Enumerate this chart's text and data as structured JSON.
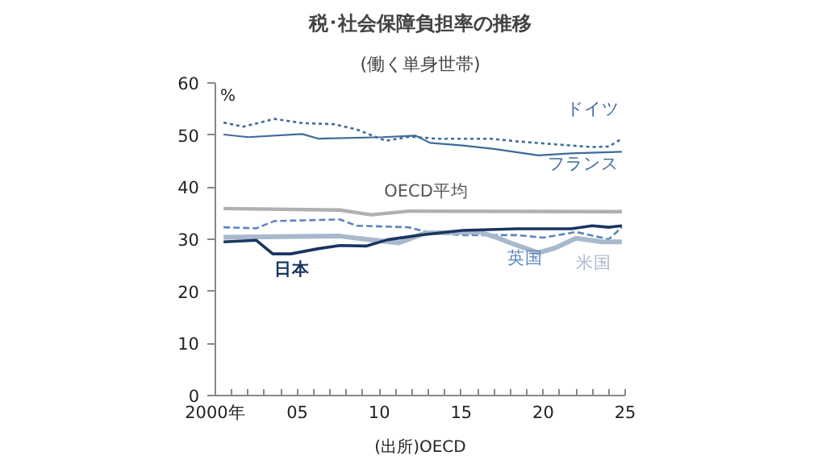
{
  "chart_data": {
    "type": "line",
    "title": "税･社会保障負担率の推移",
    "subtitle": "(働く単身世帯)",
    "ylabel": "%",
    "annotations": [
      "(出所)OECD"
    ],
    "xlim": [
      2000,
      2025
    ],
    "ylim": [
      0,
      60
    ],
    "xticks": [
      {
        "value": 2000,
        "label": "2000年"
      },
      {
        "value": 2001,
        "label": null
      },
      {
        "value": 2002,
        "label": null
      },
      {
        "value": 2003,
        "label": null
      },
      {
        "value": 2004,
        "label": null
      },
      {
        "value": 2005,
        "label": "05"
      },
      {
        "value": 2006,
        "label": null
      },
      {
        "value": 2007,
        "label": null
      },
      {
        "value": 2008,
        "label": null
      },
      {
        "value": 2009,
        "label": null
      },
      {
        "value": 2010,
        "label": "10"
      },
      {
        "value": 2011,
        "label": null
      },
      {
        "value": 2012,
        "label": null
      },
      {
        "value": 2013,
        "label": null
      },
      {
        "value": 2014,
        "label": null
      },
      {
        "value": 2015,
        "label": "15"
      },
      {
        "value": 2016,
        "label": null
      },
      {
        "value": 2017,
        "label": null
      },
      {
        "value": 2018,
        "label": null
      },
      {
        "value": 2019,
        "label": null
      },
      {
        "value": 2020,
        "label": "20"
      },
      {
        "value": 2021,
        "label": null
      },
      {
        "value": 2022,
        "label": null
      },
      {
        "value": 2023,
        "label": null
      },
      {
        "value": 2024,
        "label": null
      },
      {
        "value": 2025,
        "label": "25"
      }
    ],
    "yticks": [
      0,
      10,
      20,
      30,
      40,
      50,
      60
    ],
    "grid": false,
    "legend": false,
    "marker": "none",
    "series": [
      {
        "name": "ドイツ",
        "color": "#3f6a9a",
        "line_style": "dotted",
        "x": [
          2000.5,
          2001.7,
          2003.6,
          2005.3,
          2007.2,
          2008.6,
          2010.4,
          2011.9,
          2013.5,
          2016.8,
          2018.4,
          2020.4,
          2023,
          2024,
          2024.8
        ],
        "values": [
          52.4,
          51.6,
          53.1,
          52.3,
          52.1,
          51.1,
          48.9,
          49.7,
          49.3,
          49.3,
          48.8,
          48.3,
          47.7,
          47.8,
          49.3
        ]
      },
      {
        "name": "フランス",
        "color": "#3f6a9a",
        "line_style": "solid",
        "x": [
          2000.5,
          2002,
          2005.3,
          2006.3,
          2010.2,
          2012.2,
          2013.1,
          2015.1,
          2017.1,
          2019.7,
          2021.7,
          2024.8
        ],
        "values": [
          50.1,
          49.6,
          50.2,
          49.3,
          49.6,
          49.9,
          48.5,
          48.0,
          47.3,
          46.1,
          46.5,
          46.8
        ]
      },
      {
        "name": "OECD平均",
        "color": "#b0b0b0",
        "line_style": "solid",
        "x": [
          2000.5,
          2007.6,
          2009.5,
          2011.8,
          2024.8
        ],
        "values": [
          35.9,
          35.6,
          34.7,
          35.4,
          35.3
        ]
      },
      {
        "name": "英国",
        "color": "#5a86bd",
        "line_style": "dashed",
        "x": [
          2000.5,
          2002.5,
          2003.6,
          2007.6,
          2008.6,
          2011.8,
          2013.1,
          2015.1,
          2018.4,
          2020,
          2022,
          2024,
          2024.8
        ],
        "values": [
          32.3,
          32.1,
          33.5,
          33.8,
          32.6,
          32.3,
          31.2,
          30.8,
          30.8,
          30.3,
          31.4,
          30.0,
          32.3
        ]
      },
      {
        "name": "米国",
        "color": "#a9b9cc",
        "line_style": "solid",
        "x": [
          2000.5,
          2007.6,
          2009.5,
          2011.2,
          2012.8,
          2016.1,
          2017.1,
          2018,
          2019.7,
          2020.7,
          2022,
          2023.6,
          2024.8
        ],
        "values": [
          30.4,
          30.6,
          29.9,
          29.3,
          31.2,
          31.4,
          30.4,
          29.3,
          27.4,
          28.3,
          30.2,
          29.5,
          29.5
        ]
      },
      {
        "name": "日本",
        "color": "#1a3560",
        "line_style": "solid",
        "x": [
          2000.5,
          2002.5,
          2003.5,
          2004.6,
          2006.3,
          2007.6,
          2009.2,
          2010.5,
          2012.5,
          2015.1,
          2018.4,
          2021.7,
          2023,
          2024,
          2024.8
        ],
        "values": [
          29.5,
          29.8,
          27.2,
          27.2,
          28.2,
          28.8,
          28.7,
          29.9,
          30.8,
          31.7,
          32.0,
          32.0,
          32.6,
          32.3,
          32.6
        ]
      }
    ]
  }
}
